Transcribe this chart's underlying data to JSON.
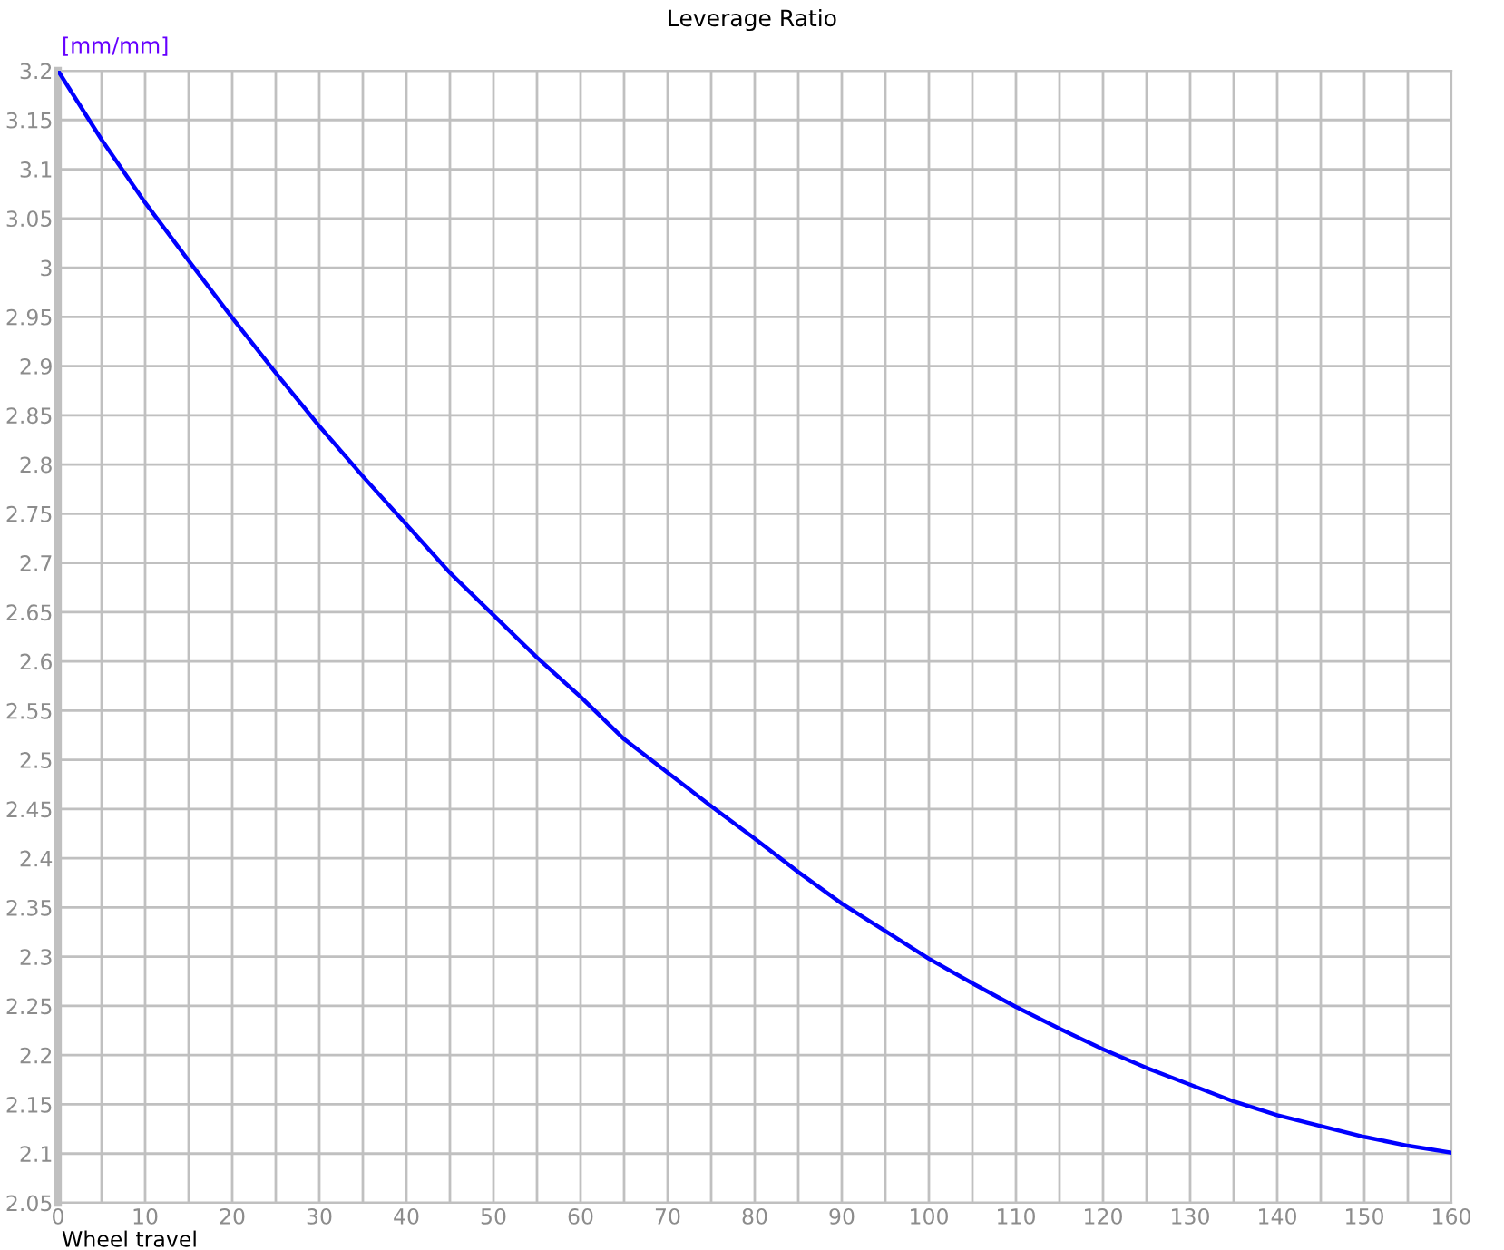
{
  "chart_data": {
    "type": "line",
    "title": "Leverage Ratio",
    "xlabel": "Wheel travel",
    "ylabel": "[mm/mm]",
    "x": [
      0,
      5,
      10,
      15,
      20,
      25,
      30,
      35,
      40,
      45,
      50,
      55,
      60,
      65,
      70,
      75,
      80,
      85,
      90,
      95,
      100,
      105,
      110,
      115,
      120,
      125,
      130,
      135,
      140,
      145,
      150,
      155,
      160
    ],
    "series": [
      {
        "color": "#0000ff",
        "values": [
          3.2,
          3.13,
          3.066,
          3.007,
          2.949,
          2.893,
          2.839,
          2.788,
          2.739,
          2.69,
          2.647,
          2.604,
          2.564,
          2.521,
          2.487,
          2.453,
          2.42,
          2.386,
          2.354,
          2.326,
          2.298,
          2.273,
          2.249,
          2.227,
          2.206,
          2.187,
          2.17,
          2.153,
          2.139,
          2.128,
          2.117,
          2.108,
          2.101
        ]
      }
    ],
    "xlim": [
      0,
      160
    ],
    "xticks": [
      0,
      {
        "value": 5,
        "label": null
      },
      10,
      {
        "value": 15,
        "label": null
      },
      20,
      {
        "value": 25,
        "label": null
      },
      30,
      {
        "value": 35,
        "label": null
      },
      40,
      {
        "value": 45,
        "label": null
      },
      50,
      {
        "value": 55,
        "label": null
      },
      60,
      {
        "value": 65,
        "label": null
      },
      70,
      {
        "value": 75,
        "label": null
      },
      80,
      {
        "value": 85,
        "label": null
      },
      90,
      {
        "value": 95,
        "label": null
      },
      100,
      {
        "value": 105,
        "label": null
      },
      110,
      {
        "value": 115,
        "label": null
      },
      120,
      {
        "value": 125,
        "label": null
      },
      130,
      {
        "value": 135,
        "label": null
      },
      140,
      {
        "value": 145,
        "label": null
      },
      150,
      {
        "value": 155,
        "label": null
      },
      160
    ],
    "ylim": [
      2.05,
      3.2
    ],
    "yticks": [
      2.05,
      2.1,
      2.15,
      2.2,
      2.25,
      2.3,
      2.35,
      2.4,
      2.45,
      2.5,
      2.55,
      2.6,
      2.65,
      2.7,
      2.75,
      2.8,
      2.85,
      2.9,
      2.95,
      3,
      3.05,
      3.1,
      3.15,
      3.2
    ],
    "grid": true,
    "legend": false,
    "marker": "none",
    "line_style": "solid"
  }
}
